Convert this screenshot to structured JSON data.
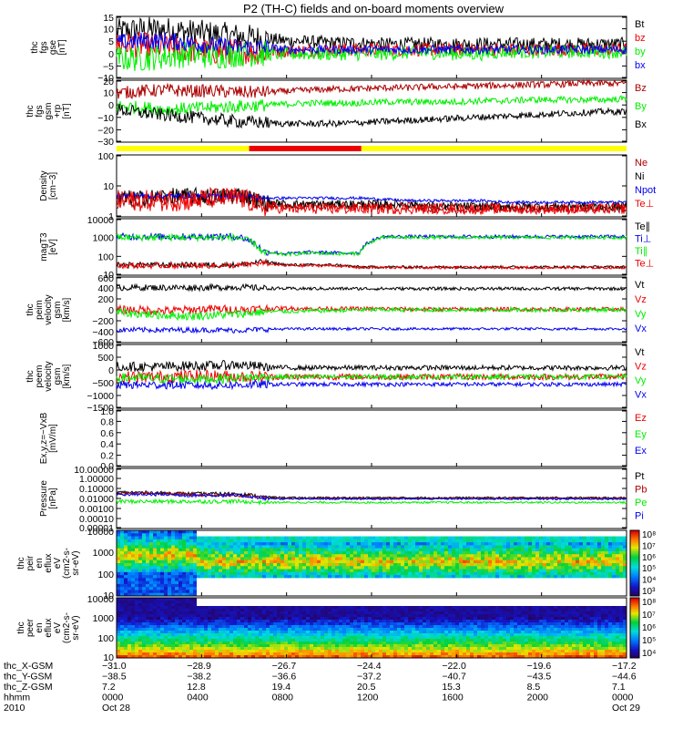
{
  "title": "P2 (TH-C) fields and on-board moments overview",
  "colors": {
    "black": "#000000",
    "red": "#ee0000",
    "darkred": "#aa0000",
    "green": "#00ee00",
    "blue": "#0000ee",
    "yellow": "#ffff00"
  },
  "chart_data": [
    {
      "type": "line",
      "id": "fgs_gse",
      "ylabel": [
        "thc",
        "fgs",
        "gse",
        "[nT]"
      ],
      "yticks": [
        "15",
        "10",
        "5",
        "0",
        "−5",
        "−10"
      ],
      "ylim": [
        -12,
        16
      ],
      "series": [
        {
          "name": "Bt",
          "color": "black",
          "values": [
            9,
            10,
            10,
            9,
            8,
            7,
            6,
            5,
            4.5,
            4,
            4,
            3.5,
            3.5,
            3.5,
            3.5,
            3.5,
            3.5,
            3.5,
            3.5,
            3.5,
            3.5,
            3.5
          ],
          "noise": 3
        },
        {
          "name": "bz",
          "color": "red",
          "values": [
            3,
            3,
            2,
            1,
            0,
            0,
            0,
            0.5,
            0.5,
            1,
            1,
            1,
            1,
            1,
            1,
            1,
            1,
            1,
            1,
            1,
            1,
            1
          ],
          "noise": 3
        },
        {
          "name": "by",
          "color": "green",
          "values": [
            -3,
            -3,
            -2,
            -1,
            -2,
            -1,
            -1,
            -1,
            -1,
            -1,
            -1,
            -1,
            -0.5,
            -0.5,
            -1,
            -1,
            0,
            0,
            0,
            0,
            0,
            0
          ],
          "noise": 3
        },
        {
          "name": "bx",
          "color": "blue",
          "values": [
            4,
            5,
            5,
            4,
            3,
            2,
            2,
            1,
            1,
            1,
            1,
            1,
            1,
            1,
            1,
            1,
            1,
            1,
            1,
            1,
            1,
            1
          ],
          "noise": 2
        }
      ]
    },
    {
      "type": "line",
      "id": "fgs_gsm",
      "ylabel": [
        "thc",
        "fgs",
        "gsm",
        "+rp",
        "[nT]"
      ],
      "yticks": [
        "20",
        "10",
        "0",
        "−10",
        "−20",
        "−30"
      ],
      "ylim": [
        -35,
        22
      ],
      "series": [
        {
          "name": "Bz",
          "color": "darkred",
          "values": [
            10,
            12,
            13,
            12,
            12,
            11,
            11,
            12,
            13,
            14,
            14,
            15,
            15,
            16,
            16,
            17,
            17,
            18,
            18,
            19,
            19,
            19
          ],
          "noise": 3
        },
        {
          "name": "By",
          "color": "green",
          "values": [
            -2,
            -3,
            -5,
            -4,
            -3,
            -2,
            -1,
            0,
            1,
            1,
            1,
            2,
            2,
            2,
            2,
            3,
            3,
            4,
            4,
            4,
            4,
            5
          ],
          "noise": 3
        },
        {
          "name": "Bx",
          "color": "black",
          "values": [
            -5,
            -8,
            -10,
            -12,
            -14,
            -16,
            -17,
            -18,
            -18,
            -18,
            -17,
            -16,
            -15,
            -14,
            -13,
            -12,
            -11,
            -10,
            -9,
            -8,
            -7,
            -7
          ],
          "noise": 3
        }
      ]
    },
    {
      "type": "area",
      "id": "region_bar",
      "ylabel": [],
      "segments": [
        {
          "from": 0.0,
          "to": 0.26,
          "color": "yellow"
        },
        {
          "from": 0.26,
          "to": 0.48,
          "color": "red"
        },
        {
          "from": 0.48,
          "to": 1.0,
          "color": "yellow"
        }
      ]
    },
    {
      "type": "line",
      "id": "density",
      "scale": "log",
      "ylabel": [
        "Density",
        "[cm−3]"
      ],
      "yticks": [
        "100",
        "10",
        "1"
      ],
      "ylim": [
        1,
        200
      ],
      "series": [
        {
          "name": "Ne",
          "color": "darkred",
          "values": [
            4,
            4,
            5,
            5,
            5,
            6,
            3,
            2.5,
            2.5,
            2.5,
            2.5,
            2.5,
            2.5,
            2,
            2,
            2,
            2,
            2,
            2,
            2,
            2,
            2
          ],
          "noise": 0.15
        },
        {
          "name": "Ni",
          "color": "black",
          "values": [
            5,
            5,
            6,
            6,
            6,
            7,
            3.5,
            3,
            3,
            3,
            3,
            3,
            3,
            2.5,
            2.5,
            2.5,
            2.5,
            2.5,
            2.5,
            2.5,
            2.5,
            2.5
          ],
          "noise": 0.15
        },
        {
          "name": "Npot",
          "color": "blue",
          "values": [
            6,
            6,
            6,
            6,
            6,
            6,
            5,
            5,
            5,
            5,
            5,
            4.5,
            4,
            4,
            4,
            4,
            3.5,
            3.5,
            3.5,
            3.5,
            3.5,
            3.5
          ],
          "noise": 0.05
        },
        {
          "name": "Te⊥",
          "color": "red",
          "values": [
            4,
            4,
            4,
            4,
            5,
            5,
            2.5,
            2,
            2,
            2,
            2,
            2,
            2,
            2,
            2,
            2,
            2,
            2,
            2,
            2,
            2,
            2
          ],
          "noise": 0.2
        }
      ]
    },
    {
      "type": "line",
      "id": "temperature",
      "scale": "log",
      "ylabel": [
        "magT3",
        "[eV]"
      ],
      "yticks": [
        "10000",
        "1000",
        "100",
        "10"
      ],
      "ylim": [
        5,
        10000
      ],
      "series": [
        {
          "name": "Te∥",
          "color": "black",
          "values": [
            20,
            20,
            20,
            20,
            20,
            20,
            30,
            20,
            20,
            20,
            15,
            15,
            15,
            15,
            15,
            15,
            15,
            15,
            15,
            15,
            15,
            15
          ],
          "noise": 0.08
        },
        {
          "name": "Ti⊥",
          "color": "blue",
          "values": [
            900,
            900,
            900,
            900,
            900,
            900,
            120,
            90,
            110,
            100,
            100,
            900,
            900,
            900,
            900,
            900,
            900,
            900,
            900,
            900,
            900,
            900
          ],
          "noise": 0.1
        },
        {
          "name": "Ti∥",
          "color": "green",
          "values": [
            800,
            800,
            800,
            800,
            800,
            800,
            100,
            80,
            100,
            90,
            90,
            800,
            800,
            800,
            800,
            800,
            800,
            800,
            800,
            800,
            800,
            800
          ],
          "noise": 0.1
        },
        {
          "name": "Te⊥",
          "color": "red",
          "values": [
            18,
            18,
            18,
            18,
            18,
            18,
            25,
            18,
            18,
            18,
            14,
            14,
            14,
            14,
            14,
            14,
            14,
            14,
            14,
            14,
            14,
            14
          ],
          "noise": 0.08
        }
      ]
    },
    {
      "type": "line",
      "id": "peim_velocity",
      "ylabel": [
        "thc",
        "peim",
        "velocity",
        "gsm",
        "[km/s]"
      ],
      "yticks": [
        "600",
        "400",
        "200",
        "0",
        "−200",
        "−400",
        "−600"
      ],
      "ylim": [
        -620,
        620
      ],
      "series": [
        {
          "name": "Vt",
          "color": "black",
          "values": [
            420,
            420,
            420,
            420,
            420,
            430,
            410,
            400,
            400,
            400,
            400,
            400,
            400,
            400,
            400,
            400,
            400,
            400,
            400,
            400,
            400,
            400
          ],
          "noise": 30
        },
        {
          "name": "Vz",
          "color": "red",
          "values": [
            0,
            0,
            -20,
            0,
            20,
            0,
            20,
            30,
            20,
            20,
            20,
            20,
            10,
            10,
            10,
            10,
            10,
            10,
            10,
            10,
            10,
            10
          ],
          "noise": 40
        },
        {
          "name": "Vy",
          "color": "green",
          "values": [
            -50,
            -80,
            -100,
            -120,
            -100,
            -80,
            -40,
            -30,
            -20,
            -10,
            0,
            0,
            0,
            0,
            0,
            0,
            0,
            0,
            0,
            0,
            0,
            0
          ],
          "noise": 40
        },
        {
          "name": "Vx",
          "color": "blue",
          "values": [
            -380,
            -380,
            -380,
            -380,
            -380,
            -390,
            -370,
            -360,
            -360,
            -360,
            -360,
            -360,
            -360,
            -360,
            -360,
            -360,
            -360,
            -360,
            -360,
            -360,
            -360,
            -360
          ],
          "noise": 25
        }
      ]
    },
    {
      "type": "line",
      "id": "peem_velocity",
      "ylabel": [
        "thc",
        "peem",
        "velocity",
        "gsm",
        "[km/s]"
      ],
      "yticks": [
        "1000",
        "500",
        "0",
        "−500",
        "−1000",
        "−1500"
      ],
      "ylim": [
        -1550,
        1600
      ],
      "series": [
        {
          "name": "Vt",
          "color": "black",
          "values": [
            500,
            500,
            500,
            550,
            550,
            600,
            500,
            450,
            450,
            450,
            450,
            450,
            450,
            450,
            450,
            450,
            450,
            450,
            450,
            450,
            450,
            450
          ],
          "noise": 120
        },
        {
          "name": "Vz",
          "color": "red",
          "values": [
            0,
            0,
            0,
            50,
            50,
            0,
            0,
            0,
            0,
            0,
            0,
            0,
            0,
            0,
            0,
            0,
            0,
            0,
            0,
            0,
            0,
            0
          ],
          "noise": 150
        },
        {
          "name": "Vy",
          "color": "green",
          "values": [
            -50,
            -50,
            -100,
            -100,
            -100,
            -50,
            0,
            0,
            0,
            0,
            0,
            0,
            0,
            0,
            0,
            0,
            0,
            0,
            0,
            0,
            0,
            0
          ],
          "noise": 120
        },
        {
          "name": "Vx",
          "color": "blue",
          "values": [
            -400,
            -400,
            -400,
            -420,
            -420,
            -400,
            -380,
            -370,
            -370,
            -370,
            -370,
            -370,
            -370,
            -370,
            -370,
            -370,
            -370,
            -370,
            -370,
            -370,
            -370,
            -370
          ],
          "noise": 100
        }
      ]
    },
    {
      "type": "line",
      "id": "efield",
      "ylabel": [
        "Ex,y,z=−VxB",
        "[mV/m]"
      ],
      "yticks": [
        "1.0",
        "0.8",
        "0.6",
        "0.4",
        "0.2",
        "0.0"
      ],
      "ylim": [
        0,
        1
      ],
      "series": [
        {
          "name": "Ez",
          "color": "red",
          "values": []
        },
        {
          "name": "Ey",
          "color": "green",
          "values": []
        },
        {
          "name": "Ex",
          "color": "blue",
          "values": []
        }
      ]
    },
    {
      "type": "line",
      "id": "pressure",
      "scale": "log",
      "ylabel": [
        "Pressure",
        "[nPa]"
      ],
      "yticks": [
        "10.00000",
        "1.00000",
        "0.10000",
        "0.01000",
        "0.00100",
        "0.00010",
        "0.00001"
      ],
      "ylim": [
        1e-05,
        10
      ],
      "series": [
        {
          "name": "Pt",
          "color": "black",
          "values": [
            0.04,
            0.04,
            0.035,
            0.03,
            0.03,
            0.03,
            0.015,
            0.012,
            0.012,
            0.012,
            0.012,
            0.012,
            0.012,
            0.012,
            0.012,
            0.012,
            0.012,
            0.012,
            0.012,
            0.012,
            0.012,
            0.012
          ],
          "noise": 0.08
        },
        {
          "name": "Pb",
          "color": "darkred",
          "values": [
            0.03,
            0.03,
            0.03,
            0.025,
            0.02,
            0.02,
            0.012,
            0.01,
            0.01,
            0.01,
            0.01,
            0.01,
            0.01,
            0.01,
            0.01,
            0.01,
            0.01,
            0.01,
            0.01,
            0.01,
            0.01,
            0.01
          ],
          "noise": 0.08
        },
        {
          "name": "Pe",
          "color": "green",
          "values": [
            0.005,
            0.005,
            0.005,
            0.005,
            0.005,
            0.005,
            0.004,
            0.004,
            0.004,
            0.004,
            0.004,
            0.004,
            0.004,
            0.004,
            0.004,
            0.004,
            0.004,
            0.004,
            0.004,
            0.004,
            0.004,
            0.004
          ],
          "noise": 0.1
        },
        {
          "name": "Pi",
          "color": "blue",
          "values": [
            0.025,
            0.025,
            0.025,
            0.02,
            0.02,
            0.02,
            0.01,
            0.009,
            0.009,
            0.009,
            0.009,
            0.009,
            0.009,
            0.009,
            0.009,
            0.009,
            0.009,
            0.009,
            0.009,
            0.009,
            0.009,
            0.009
          ],
          "noise": 0.08
        }
      ]
    },
    {
      "type": "heatmap",
      "id": "peir_spec",
      "ylabel": [
        "thc",
        "peir",
        "en",
        "eflux",
        "eV",
        "(cm2-s-",
        "sr-eV)"
      ],
      "yticks": [
        "10000",
        "1000",
        "100",
        "10"
      ],
      "colorbar": [
        "10⁸",
        "10⁷",
        "10⁶",
        "10⁵",
        "10⁴",
        "10³"
      ]
    },
    {
      "type": "heatmap",
      "id": "peer_spec",
      "ylabel": [
        "thc",
        "peer",
        "en",
        "eflux",
        "eV",
        "(cm2-s-",
        "sr-eV)"
      ],
      "yticks": [
        "10000",
        "1000",
        "100",
        "10"
      ],
      "colorbar": [
        "10⁸",
        "10⁷",
        "10⁶",
        "10⁵",
        "10⁴"
      ]
    }
  ],
  "xaxis": {
    "rows": [
      {
        "label": "thc_X-GSM",
        "values": [
          "−31.0",
          "−28.9",
          "−26.7",
          "−24.4",
          "−22.0",
          "−19.6",
          "−17.2"
        ]
      },
      {
        "label": "thc_Y-GSM",
        "values": [
          "−38.5",
          "−38.2",
          "−36.6",
          "−37.2",
          "−40.7",
          "−43.5",
          "−44.6"
        ]
      },
      {
        "label": "thc_Z-GSM",
        "values": [
          "7.2",
          "12.8",
          "19.4",
          "20.5",
          "15.3",
          "8.5",
          "7.1"
        ]
      },
      {
        "label": "hhmm",
        "values": [
          "0000",
          "0400",
          "0800",
          "1200",
          "1600",
          "2000",
          "0000"
        ]
      },
      {
        "label": "2010",
        "values": [
          "Oct 28",
          "",
          "",
          "",
          "",
          "",
          "Oct 29"
        ]
      }
    ]
  }
}
